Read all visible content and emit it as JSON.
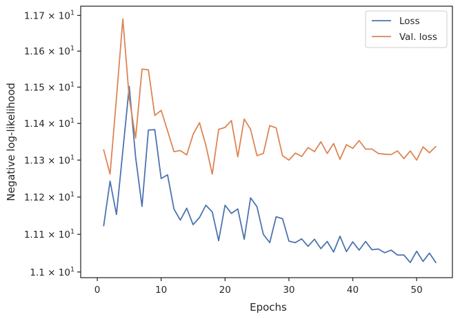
{
  "chart_data": {
    "type": "line",
    "xlabel": "Epochs",
    "ylabel": "Negative log-likelihood",
    "yscale": "log",
    "xlim": [
      -2.6,
      55.6
    ],
    "ylim": [
      10.985,
      11.726
    ],
    "xticks": [
      0,
      10,
      20,
      30,
      40,
      50
    ],
    "yticks": [
      {
        "value": 11.0,
        "mantissa": "1.1",
        "base": "10",
        "exp": "1"
      },
      {
        "value": 11.1,
        "mantissa": "1.11",
        "base": "10",
        "exp": "1"
      },
      {
        "value": 11.2,
        "mantissa": "1.12",
        "base": "10",
        "exp": "1"
      },
      {
        "value": 11.3,
        "mantissa": "1.13",
        "base": "10",
        "exp": "1"
      },
      {
        "value": 11.4,
        "mantissa": "1.14",
        "base": "10",
        "exp": "1"
      },
      {
        "value": 11.5,
        "mantissa": "1.15",
        "base": "10",
        "exp": "1"
      },
      {
        "value": 11.6,
        "mantissa": "1.16",
        "base": "10",
        "exp": "1"
      },
      {
        "value": 11.7,
        "mantissa": "1.17",
        "base": "10",
        "exp": "1"
      }
    ],
    "times_sign": "×",
    "grid": false,
    "legend_position": "top-right",
    "x": [
      1,
      2,
      3,
      4,
      5,
      6,
      7,
      8,
      9,
      10,
      11,
      12,
      13,
      14,
      15,
      16,
      17,
      18,
      19,
      20,
      21,
      22,
      23,
      24,
      25,
      26,
      27,
      28,
      29,
      30,
      31,
      32,
      33,
      34,
      35,
      36,
      37,
      38,
      39,
      40,
      41,
      42,
      43,
      44,
      45,
      46,
      47,
      48,
      49,
      50,
      51,
      52,
      53
    ],
    "series": [
      {
        "name": "Loss",
        "color": "#4c72b0",
        "values": [
          11.123,
          11.243,
          11.153,
          11.325,
          11.502,
          11.308,
          11.175,
          11.382,
          11.383,
          11.25,
          11.26,
          11.168,
          11.138,
          11.17,
          11.126,
          11.145,
          11.178,
          11.16,
          11.083,
          11.178,
          11.156,
          11.168,
          11.087,
          11.198,
          11.174,
          11.1,
          11.078,
          11.147,
          11.142,
          11.082,
          11.078,
          11.088,
          11.068,
          11.087,
          11.062,
          11.081,
          11.053,
          11.095,
          11.054,
          11.08,
          11.058,
          11.081,
          11.059,
          11.061,
          11.051,
          11.058,
          11.045,
          11.045,
          11.025,
          11.055,
          11.028,
          11.05,
          11.025
        ]
      },
      {
        "name": "Val. loss",
        "color": "#dd8452",
        "values": [
          11.328,
          11.262,
          11.47,
          11.69,
          11.47,
          11.36,
          11.55,
          11.548,
          11.422,
          11.436,
          11.38,
          11.323,
          11.326,
          11.314,
          11.37,
          11.402,
          11.34,
          11.262,
          11.384,
          11.389,
          11.408,
          11.309,
          11.412,
          11.384,
          11.312,
          11.318,
          11.394,
          11.388,
          11.312,
          11.3,
          11.319,
          11.31,
          11.334,
          11.323,
          11.35,
          11.318,
          11.345,
          11.302,
          11.342,
          11.332,
          11.353,
          11.33,
          11.33,
          11.318,
          11.316,
          11.315,
          11.325,
          11.304,
          11.325,
          11.3,
          11.336,
          11.32,
          11.337
        ]
      }
    ]
  }
}
